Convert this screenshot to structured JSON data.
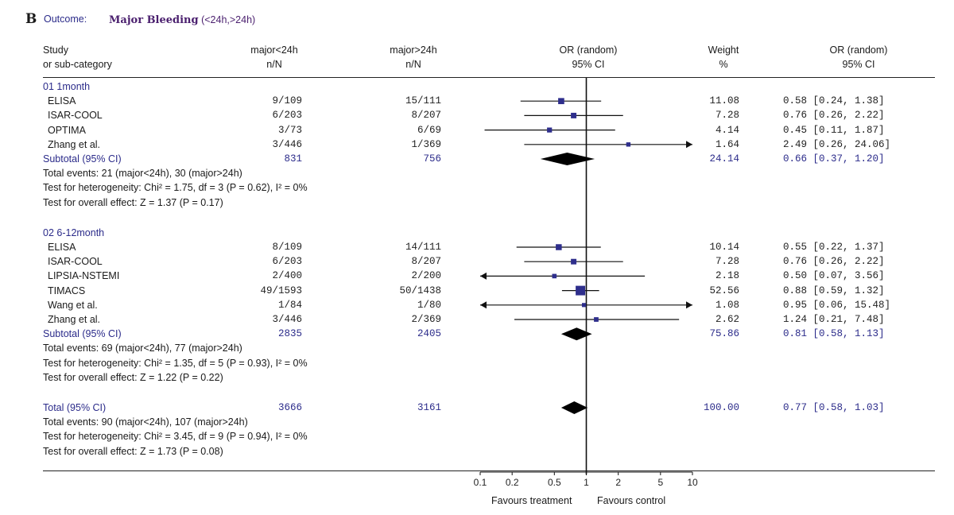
{
  "panel": {
    "letter": "B",
    "outcome_label": "Outcome:",
    "outcome_name": "Major Bleeding",
    "outcome_suffix": " (<24h,>24h)"
  },
  "headers": {
    "study": [
      "Study",
      "or sub-category"
    ],
    "treatment": [
      "major<24h",
      "n/N"
    ],
    "control": [
      "major>24h",
      "n/N"
    ],
    "plot": [
      "OR (random)",
      "95% CI"
    ],
    "weight": [
      "Weight",
      "%"
    ],
    "or": [
      "OR (random)",
      "95% CI"
    ]
  },
  "chart_data": {
    "type": "forest",
    "title": "Major Bleeding (<24h,>24h)",
    "scale": "log",
    "xlim": [
      0.1,
      10
    ],
    "ticks": [
      "0.1",
      "0.2",
      "0.5",
      "1",
      "2",
      "5",
      "10"
    ],
    "tick_values": [
      0.1,
      0.2,
      0.5,
      1,
      2,
      5,
      10
    ],
    "favours_left": "Favours treatment",
    "favours_right": "Favours control",
    "groups": [
      {
        "label": "01 1month",
        "studies": [
          {
            "name": "ELISA",
            "treat": "9/109",
            "ctrl": "15/111",
            "weight": "11.08",
            "ci_text": "0.58 [0.24, 1.38]",
            "or": 0.58,
            "lo": 0.24,
            "hi": 1.38
          },
          {
            "name": "ISAR-COOL",
            "treat": "6/203",
            "ctrl": "8/207",
            "weight": "7.28",
            "ci_text": "0.76 [0.26, 2.22]",
            "or": 0.76,
            "lo": 0.26,
            "hi": 2.22
          },
          {
            "name": "OPTIMA",
            "treat": "3/73",
            "ctrl": "6/69",
            "weight": "4.14",
            "ci_text": "0.45 [0.11, 1.87]",
            "or": 0.45,
            "lo": 0.11,
            "hi": 1.87
          },
          {
            "name": "Zhang et al.",
            "treat": "3/446",
            "ctrl": "1/369",
            "weight": "1.64",
            "ci_text": "2.49 [0.26, 24.06]",
            "or": 2.49,
            "lo": 0.26,
            "hi": 24.06
          }
        ],
        "subtotal": {
          "label": "Subtotal (95% CI)",
          "treat": "831",
          "ctrl": "756",
          "weight": "24.14",
          "ci_text": "0.66 [0.37, 1.20]",
          "or": 0.66,
          "lo": 0.37,
          "hi": 1.2
        },
        "notes": [
          "Total events: 21 (major<24h), 30 (major>24h)",
          "Test for heterogeneity: Chi² = 1.75, df = 3 (P = 0.62), I² = 0%",
          "Test for overall effect: Z = 1.37 (P = 0.17)"
        ]
      },
      {
        "label": "02 6-12month",
        "studies": [
          {
            "name": "ELISA",
            "treat": "8/109",
            "ctrl": "14/111",
            "weight": "10.14",
            "ci_text": "0.55 [0.22, 1.37]",
            "or": 0.55,
            "lo": 0.22,
            "hi": 1.37
          },
          {
            "name": "ISAR-COOL",
            "treat": "6/203",
            "ctrl": "8/207",
            "weight": "7.28",
            "ci_text": "0.76 [0.26, 2.22]",
            "or": 0.76,
            "lo": 0.26,
            "hi": 2.22
          },
          {
            "name": "LIPSIA-NSTEMI",
            "treat": "2/400",
            "ctrl": "2/200",
            "weight": "2.18",
            "ci_text": "0.50 [0.07, 3.56]",
            "or": 0.5,
            "lo": 0.07,
            "hi": 3.56
          },
          {
            "name": "TIMACS",
            "treat": "49/1593",
            "ctrl": "50/1438",
            "weight": "52.56",
            "ci_text": "0.88 [0.59, 1.32]",
            "or": 0.88,
            "lo": 0.59,
            "hi": 1.32
          },
          {
            "name": "Wang et al.",
            "treat": "1/84",
            "ctrl": "1/80",
            "weight": "1.08",
            "ci_text": "0.95 [0.06, 15.48]",
            "or": 0.95,
            "lo": 0.06,
            "hi": 15.48
          },
          {
            "name": "Zhang et al.",
            "treat": "3/446",
            "ctrl": "2/369",
            "weight": "2.62",
            "ci_text": "1.24 [0.21, 7.48]",
            "or": 1.24,
            "lo": 0.21,
            "hi": 7.48
          }
        ],
        "subtotal": {
          "label": "Subtotal (95% CI)",
          "treat": "2835",
          "ctrl": "2405",
          "weight": "75.86",
          "ci_text": "0.81 [0.58, 1.13]",
          "or": 0.81,
          "lo": 0.58,
          "hi": 1.13
        },
        "notes": [
          "Total events: 69 (major<24h), 77 (major>24h)",
          "Test for heterogeneity: Chi² = 1.35, df = 5 (P = 0.93), I² = 0%",
          "Test for overall effect: Z = 1.22 (P = 0.22)"
        ]
      }
    ],
    "total": {
      "label": "Total (95% CI)",
      "treat": "3666",
      "ctrl": "3161",
      "weight": "100.00",
      "ci_text": "0.77 [0.58, 1.03]",
      "or": 0.77,
      "lo": 0.58,
      "hi": 1.03
    },
    "total_notes": [
      "Total events: 90 (major<24h), 107 (major>24h)",
      "Test for heterogeneity: Chi² = 3.45, df = 9 (P = 0.94), I² = 0%",
      "Test for overall effect: Z = 1.73 (P = 0.08)"
    ]
  },
  "colors": {
    "marker": "#2e2e8c",
    "line": "#111111",
    "label_blue": "#2b2b8a",
    "outcome": "#4a1f6e"
  }
}
